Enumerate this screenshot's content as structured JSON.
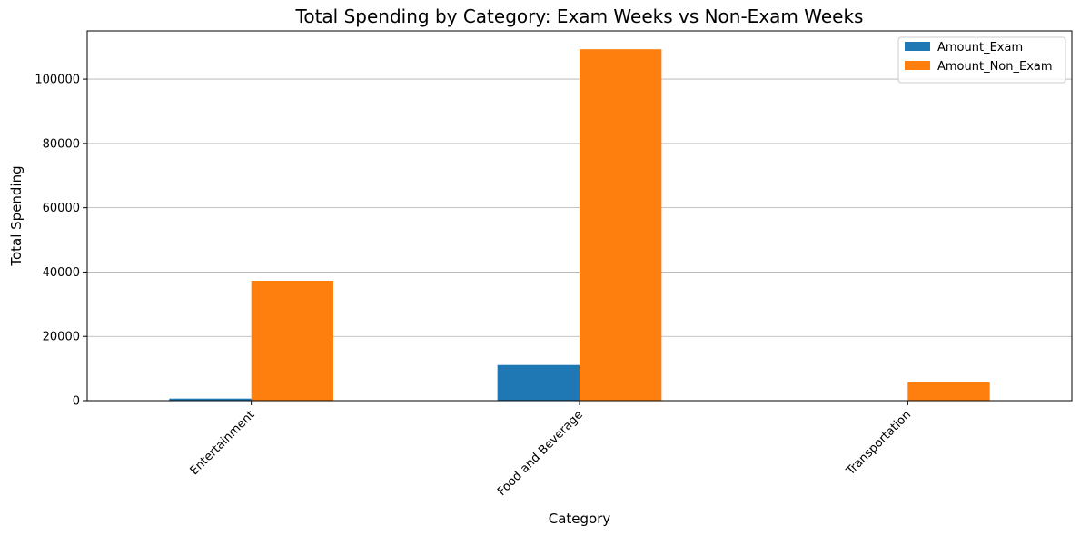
{
  "chart_data": {
    "type": "bar",
    "title": "Total Spending by Category: Exam Weeks vs Non-Exam Weeks",
    "xlabel": "Category",
    "ylabel": "Total Spending",
    "categories": [
      "Entertainment",
      "Food and Beverage",
      "Transportation"
    ],
    "series": [
      {
        "name": "Amount_Exam",
        "color": "#1f77b4",
        "values": [
          650,
          11100,
          0
        ]
      },
      {
        "name": "Amount_Non_Exam",
        "color": "#ff7f0e",
        "values": [
          37300,
          109300,
          5700
        ]
      }
    ],
    "ylim": [
      0,
      115000
    ],
    "yticks": [
      0,
      20000,
      40000,
      60000,
      80000,
      100000
    ],
    "grid": "y",
    "legend_position": "top-right",
    "xtick_rotation": 45
  }
}
